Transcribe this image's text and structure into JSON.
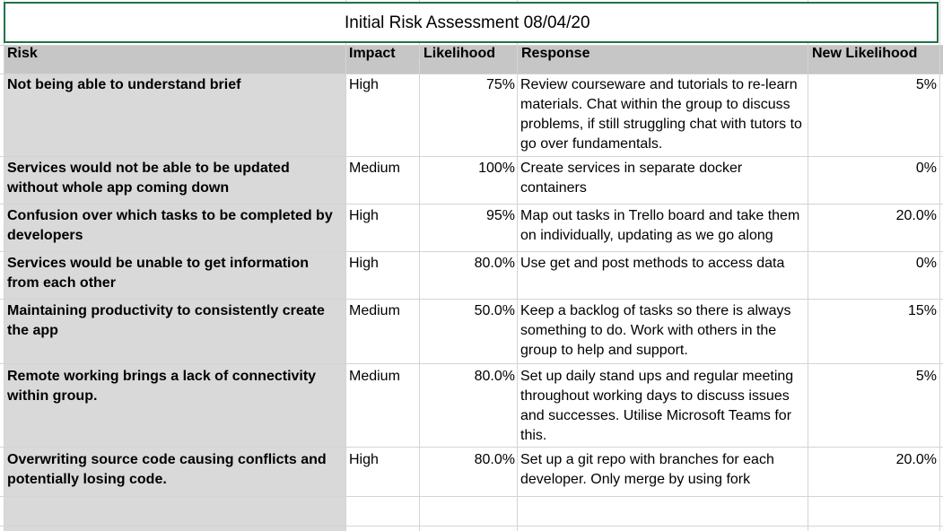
{
  "title": "Initial Risk Assessment 08/04/20",
  "headers": {
    "risk": "Risk",
    "impact": "Impact",
    "likelihood": "Likelihood",
    "response": "Response",
    "new_likelihood": "New Likelihood"
  },
  "rows": [
    {
      "risk": "Not being able to understand brief",
      "impact": "High",
      "likelihood": "75%",
      "response": "Review courseware and tutorials to re-learn materials. Chat within the group to discuss problems, if still struggling chat with tutors to go over fundamentals.",
      "new_likelihood": "5%"
    },
    {
      "risk": "Services would not be able to be updated without whole app coming down",
      "impact": "Medium",
      "likelihood": "100%",
      "response": "Create services in separate docker containers",
      "new_likelihood": "0%"
    },
    {
      "risk": "Confusion over which tasks to be completed by developers",
      "impact": "High",
      "likelihood": "95%",
      "response": "Map out tasks in Trello board and take them on individually, updating as we go along",
      "new_likelihood": "20.0%"
    },
    {
      "risk": "Services would be unable to get information from each other",
      "impact": "High",
      "likelihood": "80.0%",
      "response": "Use get and post methods to access data",
      "new_likelihood": "0%"
    },
    {
      "risk": "Maintaining productivity to consistently create the app",
      "impact": "Medium",
      "likelihood": "50.0%",
      "response": "Keep a backlog of tasks so there is always something to do. Work with others in the group to help and support.",
      "new_likelihood": "15%"
    },
    {
      "risk": "Remote working brings a lack of connectivity within group.",
      "impact": "Medium",
      "likelihood": "80.0%",
      "response": "Set up daily stand ups and regular meeting throughout working days to discuss issues and successes. Utilise Microsoft Teams for this.",
      "new_likelihood": "5%"
    },
    {
      "risk": "Overwriting source code causing conflicts and potentially losing code.",
      "impact": "High",
      "likelihood": "80.0%",
      "response": "Set up a git repo with branches for each developer. Only merge by using fork",
      "new_likelihood": "20.0%"
    }
  ]
}
